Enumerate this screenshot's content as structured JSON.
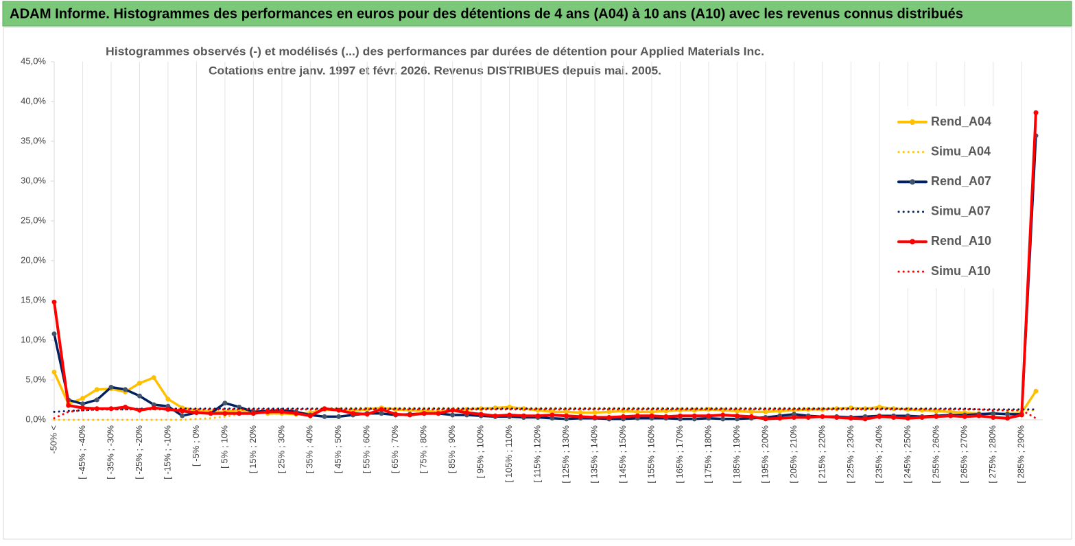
{
  "chart_data": {
    "type": "line",
    "header": "ADAM Informe. Histogrammes des performances en euros pour des détentions de 4 ans (A04) à 10 ans (A10) avec les revenus connus distribués",
    "title": "Histogrammes observés (-) et modélisés (...) des performances par durées de détention pour Applied Materials Inc.",
    "subtitle": "Cotations entre janv. 1997 et févr.  2026. Revenus DISTRIBUES depuis mai. 2005.",
    "categories": [
      "-50% <",
      null,
      "[ -45% ; -40%",
      null,
      "[ -35% ; -30%",
      null,
      "[ -25% ; -20%",
      null,
      "[ -15% ; -10%",
      null,
      "[ -5% ; 0%",
      null,
      "[ 5% ; 10%",
      null,
      "[ 15% ; 20%",
      null,
      "[ 25% ; 30%",
      null,
      "[ 35% ; 40%",
      null,
      "[ 45% ; 50%",
      null,
      "[ 55% ; 60%",
      null,
      "[ 65% ; 70%",
      null,
      "[ 75% ; 80%",
      null,
      "[ 85% ; 90%",
      null,
      "[ 95% ; 100%",
      null,
      "[ 105% ; 110%",
      null,
      "[ 115% ; 120%",
      null,
      "[ 125% ; 130%",
      null,
      "[ 135% ; 140%",
      null,
      "[ 145% ; 150%",
      null,
      "[ 155% ; 160%",
      null,
      "[ 165% ; 170%",
      null,
      "[ 175% ; 180%",
      null,
      "[ 185% ; 190%",
      null,
      "[ 195% ; 200%",
      null,
      "[ 205% ; 210%",
      null,
      "[ 215% ; 220%",
      null,
      "[ 225% ; 230%",
      null,
      "[ 235% ; 240%",
      null,
      "[ 245% ; 250%",
      null,
      "[ 255% ; 260%",
      null,
      "[ 265% ; 270%",
      null,
      "[ 275% ; 280%",
      null,
      "[ 285% ; 290%",
      null
    ],
    "series": [
      {
        "name": "Rend_A04",
        "color": "#ffc000",
        "style": "solid",
        "values": [
          6.0,
          2.0,
          2.7,
          3.8,
          3.9,
          3.5,
          4.6,
          5.3,
          2.6,
          1.5,
          1.2,
          1.0,
          1.0,
          1.2,
          1.1,
          0.8,
          0.8,
          0.7,
          0.9,
          1.3,
          1.2,
          1.1,
          1.3,
          1.5,
          1.3,
          1.2,
          1.1,
          1.0,
          1.2,
          1.3,
          1.4,
          1.5,
          1.6,
          1.4,
          1.2,
          1.0,
          1.0,
          0.9,
          0.9,
          1.0,
          1.1,
          1.0,
          1.0,
          1.1,
          1.2,
          1.2,
          1.3,
          1.2,
          1.1,
          1.0,
          1.0,
          1.1,
          1.2,
          1.3,
          1.3,
          1.4,
          1.5,
          1.4,
          1.6,
          1.4,
          1.3,
          1.2,
          1.1,
          1.0,
          0.9,
          0.8,
          0.7,
          0.8,
          0.9,
          3.6
        ]
      },
      {
        "name": "Simu_A04",
        "color": "#ffc000",
        "style": "dotted",
        "values": [
          0,
          0,
          0,
          0,
          0,
          0,
          0,
          0,
          0,
          0,
          0.1,
          0.2,
          0.4,
          0.7,
          0.9,
          1.1,
          1.2,
          1.3,
          1.4,
          1.4,
          1.5,
          1.5,
          1.5,
          1.5,
          1.5,
          1.5,
          1.5,
          1.5,
          1.5,
          1.5,
          1.5,
          1.5,
          1.5,
          1.5,
          1.5,
          1.5,
          1.5,
          1.5,
          1.5,
          1.5,
          1.5,
          1.5,
          1.5,
          1.5,
          1.5,
          1.5,
          1.5,
          1.5,
          1.5,
          1.5,
          1.5,
          1.5,
          1.5,
          1.5,
          1.5,
          1.5,
          1.5,
          1.4,
          1.4,
          1.4,
          1.4,
          1.4,
          1.4,
          1.3,
          1.3,
          1.3,
          1.3,
          1.2,
          1.2,
          1.2
        ]
      },
      {
        "name": "Rend_A07",
        "color": "#002060",
        "style": "solid",
        "values": [
          10.8,
          2.5,
          2.0,
          2.5,
          4.1,
          3.8,
          3.0,
          1.9,
          1.7,
          0.5,
          0.9,
          0.8,
          2.1,
          1.6,
          1.0,
          1.1,
          1.2,
          1.0,
          0.6,
          0.4,
          0.4,
          0.6,
          0.8,
          0.8,
          0.6,
          0.7,
          0.8,
          0.8,
          0.6,
          0.6,
          0.5,
          0.4,
          0.4,
          0.3,
          0.3,
          0.2,
          0.1,
          0.2,
          0.2,
          0.1,
          0.1,
          0.2,
          0.2,
          0.2,
          0.1,
          0.1,
          0.2,
          0.1,
          0.1,
          0.2,
          0.3,
          0.5,
          0.7,
          0.5,
          0.4,
          0.4,
          0.3,
          0.4,
          0.5,
          0.5,
          0.5,
          0.4,
          0.5,
          0.6,
          0.6,
          0.7,
          0.8,
          0.7,
          0.7,
          35.7
        ]
      },
      {
        "name": "Simu_A07",
        "color": "#002060",
        "style": "dotted",
        "values": [
          1.0,
          1.1,
          1.2,
          1.3,
          1.3,
          1.3,
          1.4,
          1.4,
          1.4,
          1.4,
          1.4,
          1.4,
          1.4,
          1.4,
          1.4,
          1.4,
          1.4,
          1.4,
          1.4,
          1.4,
          1.4,
          1.4,
          1.4,
          1.4,
          1.4,
          1.4,
          1.4,
          1.4,
          1.4,
          1.4,
          1.4,
          1.4,
          1.4,
          1.4,
          1.4,
          1.4,
          1.4,
          1.4,
          1.4,
          1.4,
          1.4,
          1.4,
          1.4,
          1.4,
          1.4,
          1.4,
          1.4,
          1.4,
          1.4,
          1.4,
          1.4,
          1.4,
          1.4,
          1.4,
          1.4,
          1.4,
          1.4,
          1.4,
          1.4,
          1.4,
          1.4,
          1.4,
          1.4,
          1.4,
          1.4,
          1.3,
          1.3,
          1.3,
          1.3,
          1.3
        ]
      },
      {
        "name": "Rend_A10",
        "color": "#ff0000",
        "style": "solid",
        "values": [
          14.8,
          1.8,
          1.5,
          1.4,
          1.4,
          1.6,
          1.2,
          1.5,
          1.3,
          1.1,
          0.9,
          0.8,
          0.8,
          0.8,
          0.8,
          1.0,
          1.0,
          0.8,
          0.5,
          1.4,
          1.2,
          0.8,
          0.7,
          1.3,
          0.7,
          0.6,
          0.8,
          0.8,
          1.2,
          0.9,
          0.7,
          0.5,
          0.6,
          0.5,
          0.5,
          0.6,
          0.5,
          0.4,
          0.3,
          0.3,
          0.4,
          0.5,
          0.5,
          0.4,
          0.5,
          0.5,
          0.5,
          0.6,
          0.5,
          0.4,
          0.1,
          0.2,
          0.3,
          0.3,
          0.4,
          0.3,
          0.2,
          0.1,
          0.4,
          0.3,
          0.2,
          0.3,
          0.4,
          0.5,
          0.4,
          0.5,
          0.3,
          0.2,
          0.6,
          38.6
        ]
      },
      {
        "name": "Simu_A10",
        "color": "#ff0000",
        "style": "dotted",
        "values": [
          0.2,
          1.0,
          1.2,
          1.3,
          1.3,
          1.3,
          1.3,
          1.3,
          1.3,
          1.3,
          1.3,
          1.3,
          1.3,
          1.3,
          1.3,
          1.3,
          1.3,
          1.3,
          1.3,
          1.3,
          1.3,
          1.3,
          1.3,
          1.3,
          1.3,
          1.3,
          1.3,
          1.3,
          1.3,
          1.3,
          1.3,
          1.3,
          1.3,
          1.3,
          1.3,
          1.3,
          1.3,
          1.3,
          1.3,
          1.3,
          1.3,
          1.3,
          1.3,
          1.3,
          1.3,
          1.3,
          1.3,
          1.3,
          1.3,
          1.3,
          1.3,
          1.3,
          1.3,
          1.3,
          1.3,
          1.3,
          1.3,
          1.3,
          1.3,
          1.3,
          1.3,
          1.3,
          1.3,
          1.3,
          1.3,
          1.3,
          1.2,
          1.2,
          1.2,
          0.2
        ]
      }
    ],
    "ylim": [
      0,
      45
    ],
    "yticks": [
      {
        "value": 0,
        "label": "0,0%"
      },
      {
        "value": 5,
        "label": "5,0%"
      },
      {
        "value": 10,
        "label": "10,0%"
      },
      {
        "value": 15,
        "label": "15,0%"
      },
      {
        "value": 20,
        "label": "20,0%"
      },
      {
        "value": 25,
        "label": "25,0%"
      },
      {
        "value": 30,
        "label": "30,0%"
      },
      {
        "value": 35,
        "label": "35,0%"
      },
      {
        "value": 40,
        "label": "40,0%"
      },
      {
        "value": 45,
        "label": "45,0%"
      }
    ],
    "grid": true,
    "legend": "right"
  }
}
